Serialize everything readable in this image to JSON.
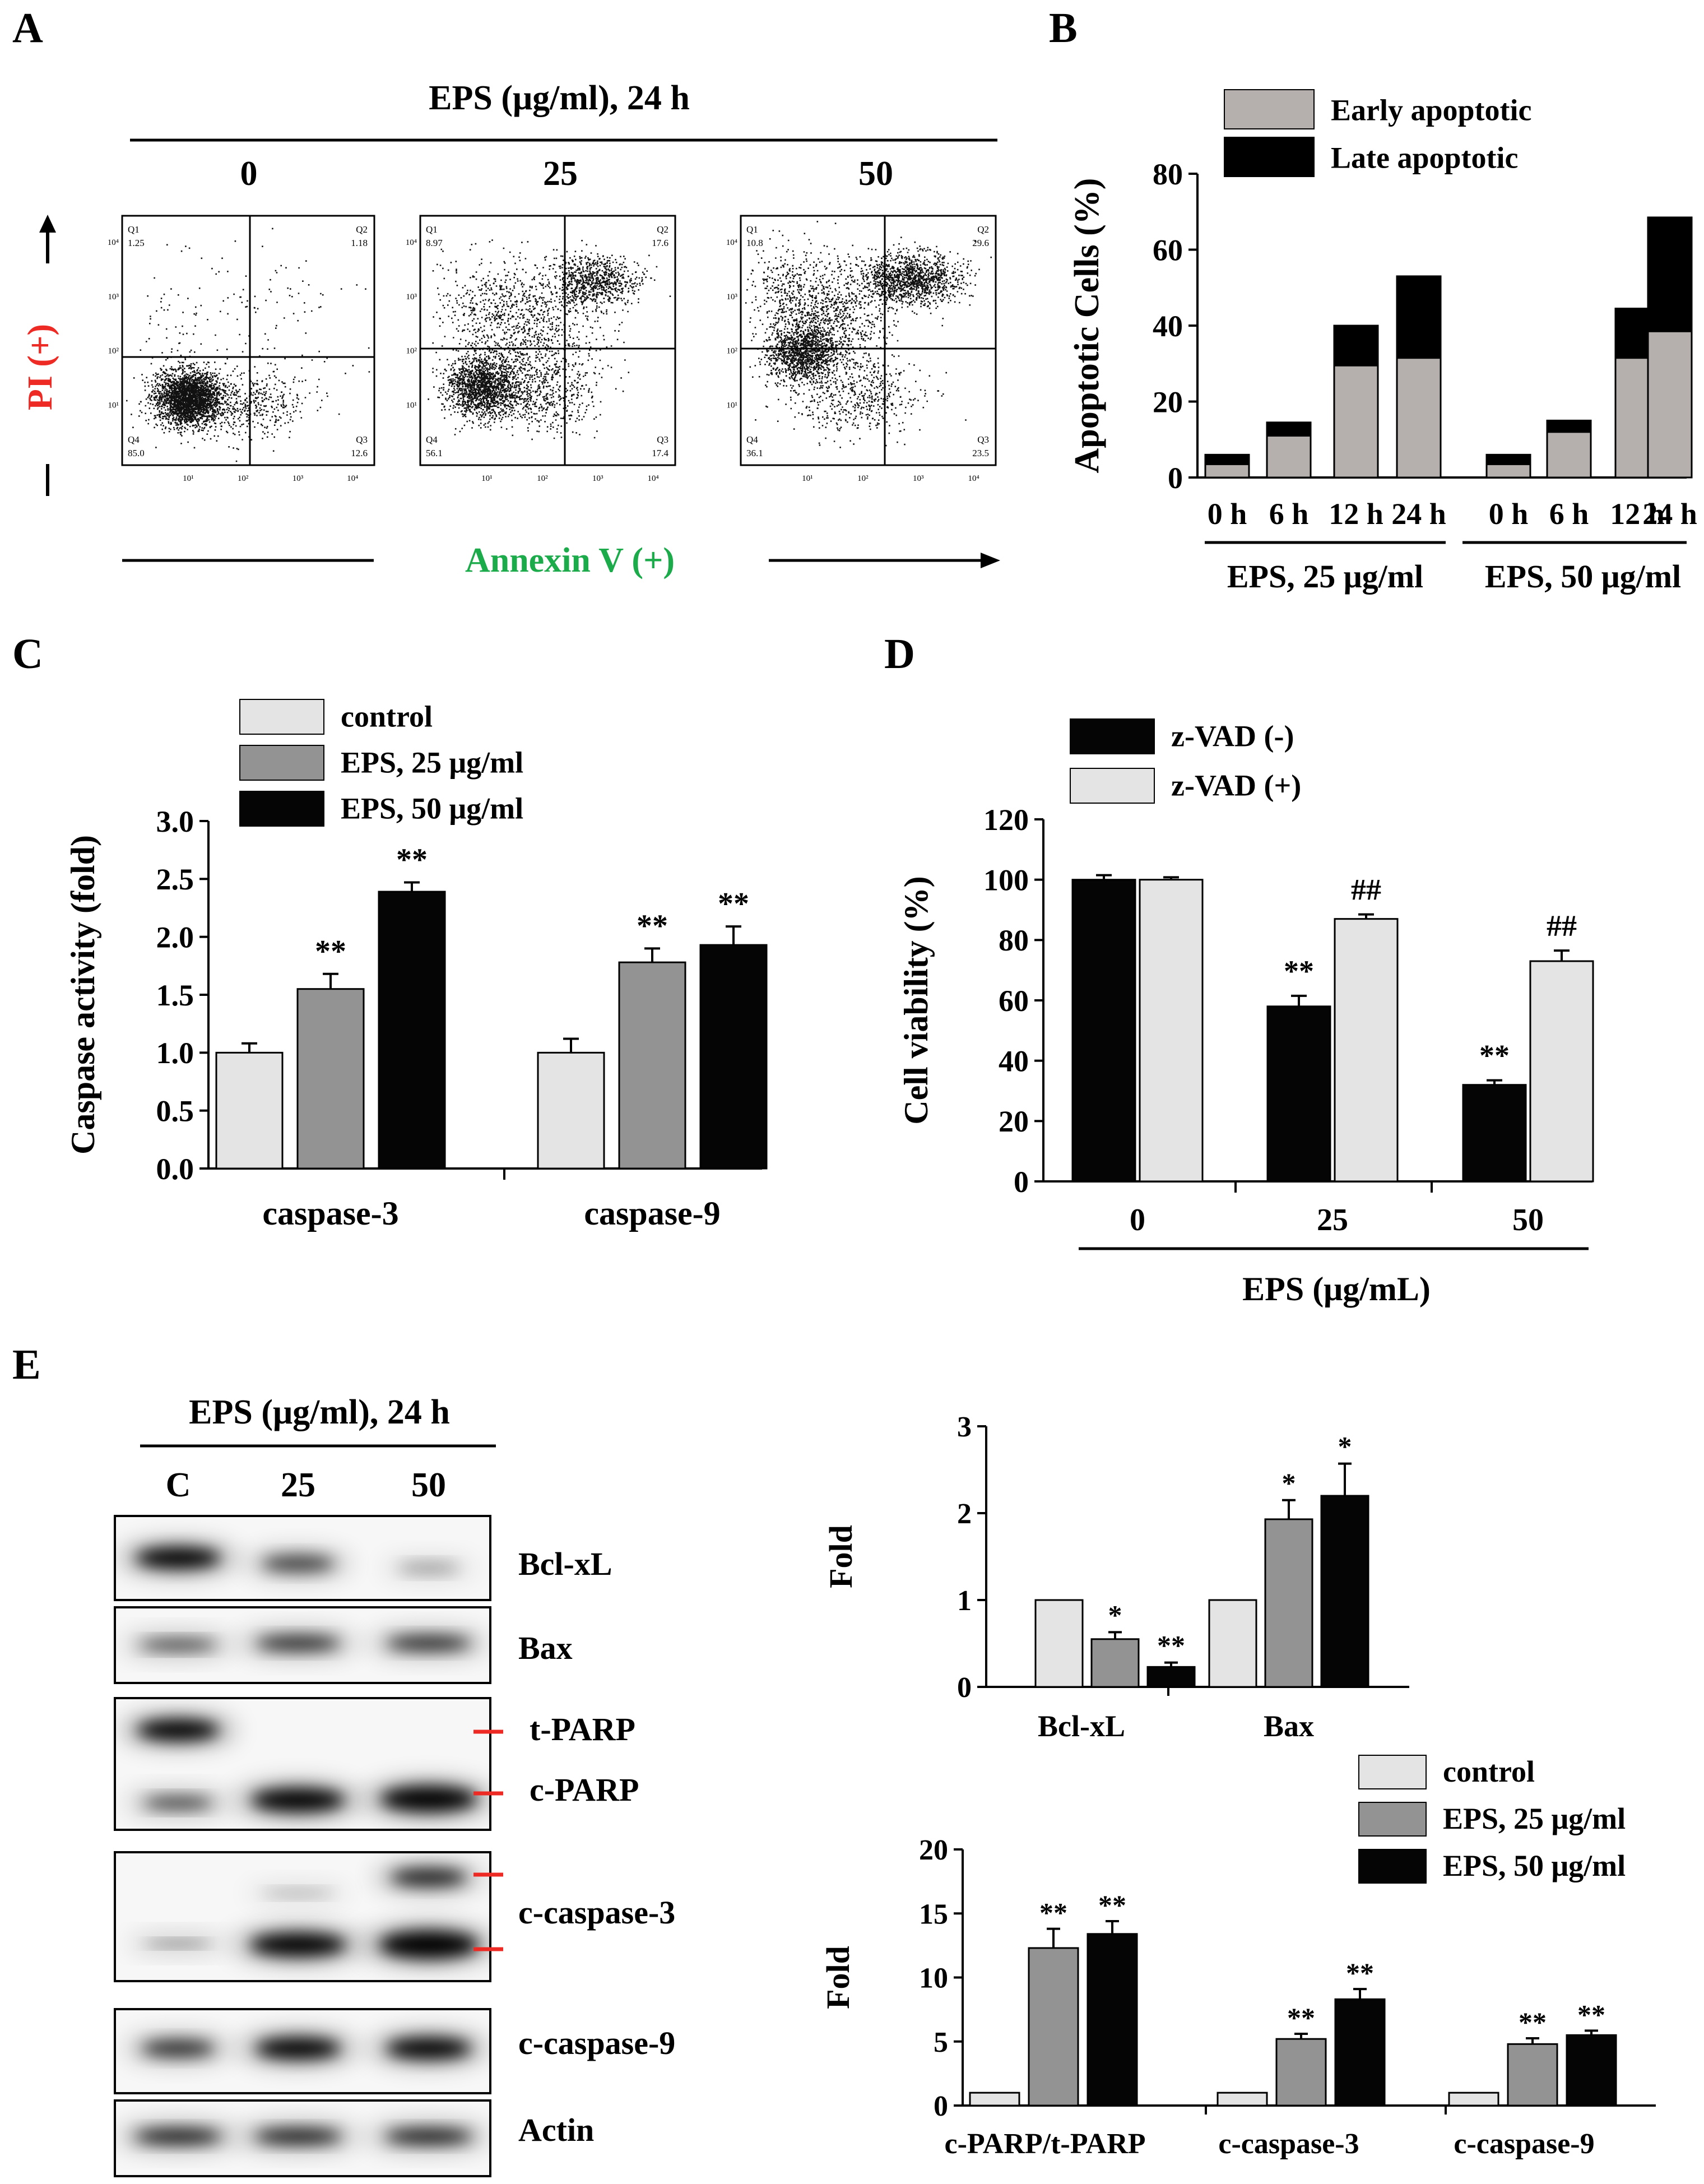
{
  "colors": {
    "light": "#e4e4e4",
    "mid": "#939393",
    "dark": "#050505",
    "early": "#b5b0ad",
    "late": "#000000",
    "red": "#ee2a24",
    "green": "#1bab4a"
  },
  "panel_labels": {
    "a": "A",
    "b": "B",
    "c": "C",
    "d": "D",
    "e": "E"
  },
  "flow": {
    "header": "EPS (μg/ml), 24 h",
    "conditions": [
      "0",
      "25",
      "50"
    ],
    "y_label": "PI (+)",
    "x_label": "Annexin V (+)",
    "quadrant_names": [
      "Q1",
      "Q2",
      "Q3",
      "Q4"
    ],
    "plots": [
      {
        "q1": "1.25",
        "q2": "1.18",
        "q3": "12.6",
        "q4": "85.0"
      },
      {
        "q1": "8.97",
        "q2": "17.6",
        "q3": "17.4",
        "q4": "56.1"
      },
      {
        "q1": "10.8",
        "q2": "29.6",
        "q3": "23.5",
        "q4": "36.1"
      }
    ],
    "y_ticks": [
      "10⁰",
      "10¹",
      "10²",
      "10³",
      "10⁴"
    ],
    "x_ticks": [
      "10⁰",
      "10¹",
      "10²",
      "10³",
      "10⁴"
    ]
  },
  "chart_data": [
    {
      "panel": "B",
      "type": "bar",
      "stacked": true,
      "ylabel": "Apoptotic Cells (%)",
      "ylim": [
        0,
        80
      ],
      "yticks": [
        0,
        20,
        40,
        60,
        80
      ],
      "categories": [
        "0 h",
        "6 h",
        "12 h",
        "24 h",
        "0 h",
        "6 h",
        "12 h",
        "24 h"
      ],
      "groups": [
        "EPS, 25 μg/ml",
        "EPS, 50 μg/ml"
      ],
      "series": [
        {
          "name": "Early apoptotic",
          "values": [
            3.5,
            11,
            29.5,
            31.5,
            3.5,
            12,
            31.5,
            38.5
          ]
        },
        {
          "name": "Late apoptotic",
          "values": [
            2.5,
            3.5,
            10.5,
            21.5,
            2.5,
            3,
            13,
            30
          ]
        }
      ],
      "legend": "top"
    },
    {
      "panel": "C",
      "type": "bar",
      "ylabel": "Caspase activity (fold)",
      "ylim": [
        0,
        3.0
      ],
      "yticks": [
        "0.0",
        "0.5",
        "1.0",
        "1.5",
        "2.0",
        "2.5",
        "3.0"
      ],
      "categories": [
        "caspase-3",
        "caspase-9"
      ],
      "series": [
        {
          "name": "control",
          "values": [
            1.0,
            1.0
          ],
          "errors": [
            0.08,
            0.12
          ],
          "marks": [
            "",
            ""
          ]
        },
        {
          "name": "EPS, 25 μg/ml",
          "values": [
            1.55,
            1.78
          ],
          "errors": [
            0.13,
            0.12
          ],
          "marks": [
            "**",
            "**"
          ]
        },
        {
          "name": "EPS, 50 μg/ml",
          "values": [
            2.39,
            1.93
          ],
          "errors": [
            0.08,
            0.16
          ],
          "marks": [
            "**",
            "**"
          ]
        }
      ],
      "legend": "top-left"
    },
    {
      "panel": "D",
      "type": "bar",
      "ylabel": "Cell viability  (%)",
      "xlabel": "EPS (μg/mL)",
      "ylim": [
        0,
        120
      ],
      "yticks": [
        0,
        20,
        40,
        60,
        80,
        100,
        120
      ],
      "categories": [
        "0",
        "25",
        "50"
      ],
      "series": [
        {
          "name": "z-VAD  (-)",
          "values": [
            100,
            58,
            32
          ],
          "errors": [
            1.5,
            3.5,
            1.5
          ],
          "marks": [
            "",
            "**",
            "**"
          ]
        },
        {
          "name": "z-VAD  (+)",
          "values": [
            100,
            87,
            73
          ],
          "errors": [
            0.8,
            1.5,
            3.5
          ],
          "marks": [
            "",
            "##",
            "##"
          ]
        }
      ],
      "legend": "top-left"
    },
    {
      "panel": "E-top",
      "type": "bar",
      "ylabel": "Fold",
      "ylim": [
        0,
        3
      ],
      "yticks": [
        0,
        1,
        2,
        3
      ],
      "categories": [
        "Bcl-xL",
        "Bax"
      ],
      "series": [
        {
          "name": "control",
          "values": [
            1.0,
            1.0
          ],
          "errors": [
            0,
            0
          ],
          "marks": [
            "",
            ""
          ]
        },
        {
          "name": "EPS, 25 μg/ml",
          "values": [
            0.55,
            1.93
          ],
          "errors": [
            0.08,
            0.22
          ],
          "marks": [
            "*",
            "*"
          ]
        },
        {
          "name": "EPS, 50 μg/ml",
          "values": [
            0.23,
            2.2
          ],
          "errors": [
            0.05,
            0.37
          ],
          "marks": [
            "**",
            "*"
          ]
        }
      ]
    },
    {
      "panel": "E-bottom",
      "type": "bar",
      "ylabel": "Fold",
      "ylim": [
        0,
        20
      ],
      "yticks": [
        0,
        5,
        10,
        15,
        20
      ],
      "categories": [
        "c-PARP/t-PARP",
        "c-caspase-3",
        "c-caspase-9"
      ],
      "series": [
        {
          "name": "control",
          "values": [
            1.0,
            1.0,
            1.0
          ],
          "errors": [
            0,
            0,
            0
          ],
          "marks": [
            "",
            "",
            ""
          ]
        },
        {
          "name": "EPS, 25 μg/ml",
          "values": [
            12.3,
            5.2,
            4.8
          ],
          "errors": [
            1.5,
            0.4,
            0.45
          ],
          "marks": [
            "**",
            "**",
            "**"
          ]
        },
        {
          "name": "EPS, 50 μg/ml",
          "values": [
            13.4,
            8.3,
            5.5
          ],
          "errors": [
            1.0,
            0.8,
            0.35
          ],
          "marks": [
            "**",
            "**",
            "**"
          ]
        }
      ],
      "legend": "top-right"
    }
  ],
  "blot": {
    "header": "EPS (μg/ml), 24 h",
    "lanes": [
      "C",
      "25",
      "50"
    ],
    "labels": [
      "Bcl-xL",
      "Bax",
      "t-PARP",
      "c-PARP",
      "c-caspase-3",
      "c-caspase-9",
      "Actin"
    ]
  }
}
